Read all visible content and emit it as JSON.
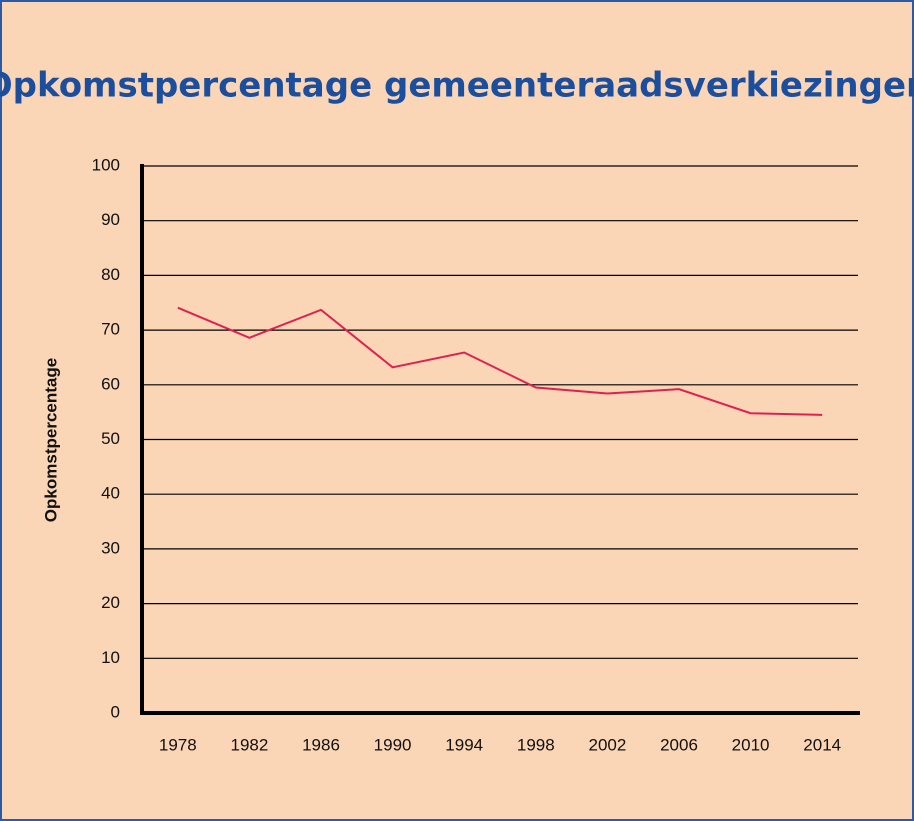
{
  "chart_data": {
    "type": "line",
    "title": "Opkomstpercentage gemeenteraadsverkiezingen",
    "y_label": "Opkomstpercentage",
    "categories": [
      "1978",
      "1982",
      "1986",
      "1990",
      "1994",
      "1998",
      "2002",
      "2006",
      "2010",
      "2014"
    ],
    "series": [
      {
        "name": "Opkomstpercentage",
        "color": "#e0204f",
        "values": [
          74.1,
          68.6,
          73.7,
          63.2,
          65.9,
          59.5,
          58.4,
          59.2,
          54.8,
          54.5
        ]
      }
    ],
    "ylim": [
      0,
      100
    ],
    "yticks": [
      0,
      10,
      20,
      30,
      40,
      50,
      60,
      70,
      80,
      90,
      100
    ],
    "grid": true
  }
}
